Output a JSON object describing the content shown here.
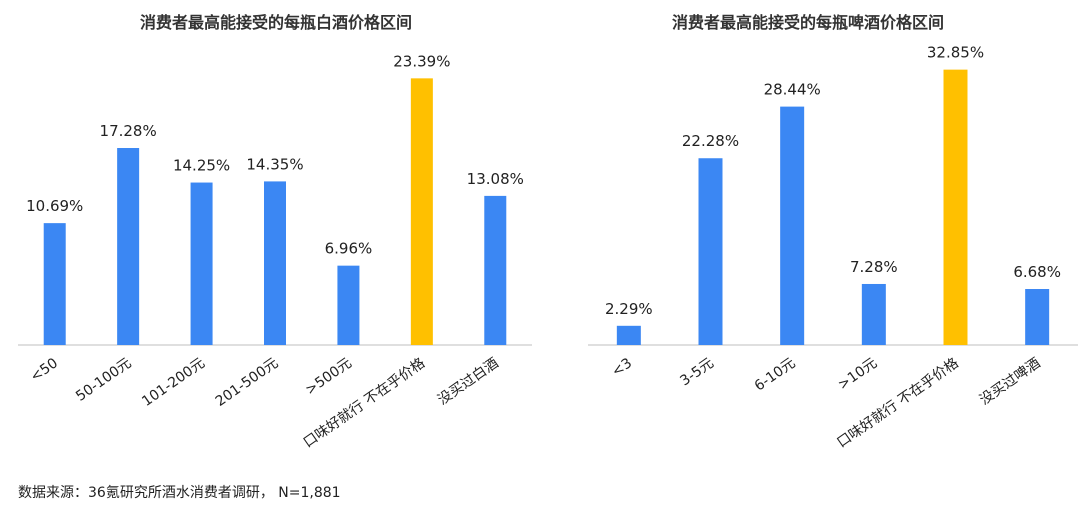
{
  "colors": {
    "bar": "#3B87F3",
    "highlight": "#FFC000",
    "axis": "#BFBFBF"
  },
  "source": "数据来源：36氪研究所酒水消费者调研， N=1,881",
  "chart_data": [
    {
      "type": "bar",
      "title": "消费者最高能接受的每瓶白酒价格区间",
      "categories": [
        "<50",
        "50-100元",
        "101-200元",
        "201-500元",
        ">500元",
        "口味好就行 不在乎价格",
        "没买过白酒"
      ],
      "values": [
        10.69,
        17.28,
        14.25,
        14.35,
        6.96,
        23.39,
        13.08
      ],
      "value_labels": [
        "10.69%",
        "17.28%",
        "14.25%",
        "14.35%",
        "6.96%",
        "23.39%",
        "13.08%"
      ],
      "highlight_index": 5,
      "ylim": [
        0,
        25
      ]
    },
    {
      "type": "bar",
      "title": "消费者最高能接受的每瓶啤酒价格区间",
      "categories": [
        "<3",
        "3-5元",
        "6-10元",
        ">10元",
        "口味好就行 不在乎价格",
        "没买过啤酒"
      ],
      "values": [
        2.29,
        22.28,
        28.44,
        7.28,
        32.85,
        6.68
      ],
      "value_labels": [
        "2.29%",
        "22.28%",
        "28.44%",
        "7.28%",
        "32.85%",
        "6.68%"
      ],
      "highlight_index": 4,
      "ylim": [
        0,
        34
      ]
    }
  ]
}
